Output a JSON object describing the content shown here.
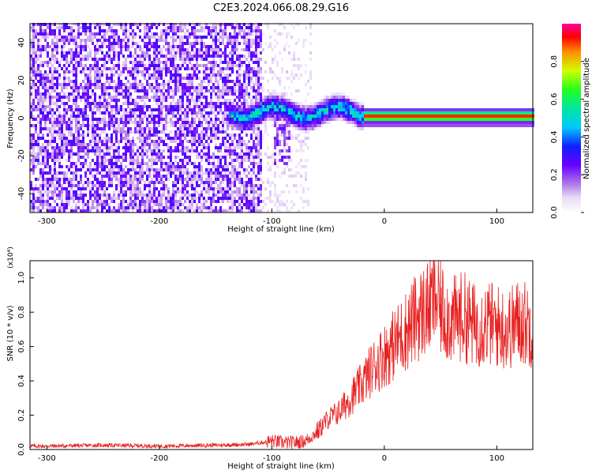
{
  "title": "C2E3.2024.066.08.29.G16",
  "chart_data": [
    {
      "type": "heatmap",
      "xlabel": "Height of straight line (km)",
      "ylabel": "Frequency (Hz)",
      "xlim": [
        -315,
        132
      ],
      "ylim": [
        -50,
        50
      ],
      "xticks": [
        -300,
        -200,
        -100,
        0,
        100
      ],
      "yticks": [
        -40,
        -20,
        0,
        20,
        40
      ],
      "colorbar": {
        "label": "Normalized spectral amplitude",
        "range": [
          0,
          1
        ],
        "ticks": [
          "0.0",
          "0.2",
          "0.4",
          "0.6",
          "0.8"
        ],
        "stops": [
          {
            "v": 0.0,
            "c": "#ffffff"
          },
          {
            "v": 0.08,
            "c": "#e9d9f7"
          },
          {
            "v": 0.15,
            "c": "#b07ae8"
          },
          {
            "v": 0.25,
            "c": "#6a00ff"
          },
          {
            "v": 0.35,
            "c": "#1020ff"
          },
          {
            "v": 0.45,
            "c": "#00c8ff"
          },
          {
            "v": 0.55,
            "c": "#00e6a0"
          },
          {
            "v": 0.65,
            "c": "#20ff20"
          },
          {
            "v": 0.75,
            "c": "#d0ff00"
          },
          {
            "v": 0.85,
            "c": "#ff9000"
          },
          {
            "v": 0.93,
            "c": "#ff0000"
          },
          {
            "v": 1.0,
            "c": "#ff00a0"
          }
        ]
      },
      "regions": [
        {
          "x": [
            -315,
            -110
          ],
          "description_level": 0.22
        },
        {
          "x": [
            -110,
            -65
          ],
          "description_level": 0.06
        },
        {
          "x": [
            -140,
            -20
          ],
          "center_hz": 2,
          "width_hz": 8,
          "peak": 0.55
        },
        {
          "x": [
            -20,
            132
          ],
          "center_hz": 0,
          "width_hz": 1,
          "peak": 0.95
        }
      ]
    },
    {
      "type": "line",
      "xlabel": "Height of straight line (km)",
      "ylabel": "SNR (10 * v/v)",
      "multiplier": "(x10⁴)",
      "xlim": [
        -315,
        132
      ],
      "ylim": [
        0,
        1.1
      ],
      "xticks": [
        -300,
        -200,
        -100,
        0,
        100
      ],
      "yticks": [
        "0.0",
        "0.2",
        "0.4",
        "0.6",
        "0.8",
        "1.0"
      ],
      "color": "#e82020",
      "series": [
        {
          "x": [
            -315,
            -300,
            -250,
            -200,
            -150,
            -120,
            -100,
            -90,
            -80,
            -70,
            -60,
            -50,
            -40,
            -30,
            -20,
            -10,
            0,
            10,
            20,
            30,
            40,
            45,
            50,
            60,
            70,
            80,
            90,
            100,
            110,
            120,
            132
          ],
          "values": [
            0.02,
            0.02,
            0.025,
            0.02,
            0.025,
            0.03,
            0.05,
            0.04,
            0.04,
            0.05,
            0.1,
            0.18,
            0.22,
            0.3,
            0.38,
            0.48,
            0.55,
            0.62,
            0.7,
            0.78,
            0.83,
            0.9,
            0.82,
            0.75,
            0.78,
            0.72,
            0.74,
            0.72,
            0.7,
            0.75,
            0.72
          ]
        }
      ]
    }
  ]
}
